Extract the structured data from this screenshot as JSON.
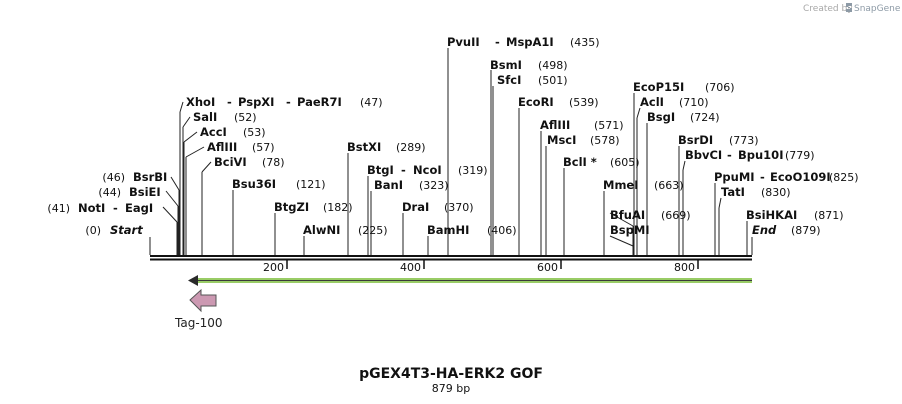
{
  "credit": {
    "prefix": "Created by",
    "brand": "SnapGene"
  },
  "map": {
    "title": "pGEX4T3-HA-ERK2 GOF",
    "length_label": "879 bp",
    "start_label": "Start",
    "end_label": "End",
    "start_pos": "(0)",
    "end_pos": "(879)",
    "ticks": [
      "200",
      "400",
      "600",
      "800"
    ],
    "feature": {
      "name": "Tag-100",
      "color": "#cc99b2",
      "strand": "reverse"
    },
    "orf_color": "#99cc66"
  },
  "sites": [
    {
      "names": [
        "NotI",
        "EagI"
      ],
      "pos": "(41)"
    },
    {
      "names": [
        "BsiEI"
      ],
      "pos": "(44)"
    },
    {
      "names": [
        "BsrBI"
      ],
      "pos": "(46)"
    },
    {
      "names": [
        "XhoI",
        "PspXI",
        "PaeR7I"
      ],
      "pos": "(47)"
    },
    {
      "names": [
        "SalI"
      ],
      "pos": "(52)"
    },
    {
      "names": [
        "AccI"
      ],
      "pos": "(53)"
    },
    {
      "names": [
        "AflIII"
      ],
      "pos": "(57)"
    },
    {
      "names": [
        "BciVI"
      ],
      "pos": "(78)"
    },
    {
      "names": [
        "Bsu36I"
      ],
      "pos": "(121)"
    },
    {
      "names": [
        "BtgZI"
      ],
      "pos": "(182)"
    },
    {
      "names": [
        "AlwNI"
      ],
      "pos": "(225)"
    },
    {
      "names": [
        "BstXI"
      ],
      "pos": "(289)"
    },
    {
      "names": [
        "BtgI",
        "NcoI"
      ],
      "pos": "(319)"
    },
    {
      "names": [
        "BanI"
      ],
      "pos": "(323)"
    },
    {
      "names": [
        "DraI"
      ],
      "pos": "(370)"
    },
    {
      "names": [
        "BamHI"
      ],
      "pos": "(406)"
    },
    {
      "names": [
        "PvuII",
        "MspA1I"
      ],
      "pos": "(435)"
    },
    {
      "names": [
        "BsmI"
      ],
      "pos": "(498)"
    },
    {
      "names": [
        "SfcI"
      ],
      "pos": "(501)"
    },
    {
      "names": [
        "EcoRI"
      ],
      "pos": "(539)"
    },
    {
      "names": [
        "AflIII"
      ],
      "pos": "(571)"
    },
    {
      "names": [
        "MscI"
      ],
      "pos": "(578)"
    },
    {
      "names": [
        "BclI *"
      ],
      "pos": "(605)"
    },
    {
      "names": [
        "MmeI"
      ],
      "pos": "(663)"
    },
    {
      "names": [
        "BfuAI"
      ],
      "pos": "(669)"
    },
    {
      "names": [
        "BspMI"
      ],
      "pos": ""
    },
    {
      "names": [
        "EcoP15I"
      ],
      "pos": "(706)"
    },
    {
      "names": [
        "AclI"
      ],
      "pos": "(710)"
    },
    {
      "names": [
        "BsgI"
      ],
      "pos": "(724)"
    },
    {
      "names": [
        "BsrDI"
      ],
      "pos": "(773)"
    },
    {
      "names": [
        "BbvCI",
        "Bpu10I"
      ],
      "pos": "(779)"
    },
    {
      "names": [
        "PpuMI",
        "EcoO109I"
      ],
      "pos": "(825)"
    },
    {
      "names": [
        "TatI"
      ],
      "pos": "(830)"
    },
    {
      "names": [
        "BsiHKAI"
      ],
      "pos": "(871)"
    }
  ]
}
